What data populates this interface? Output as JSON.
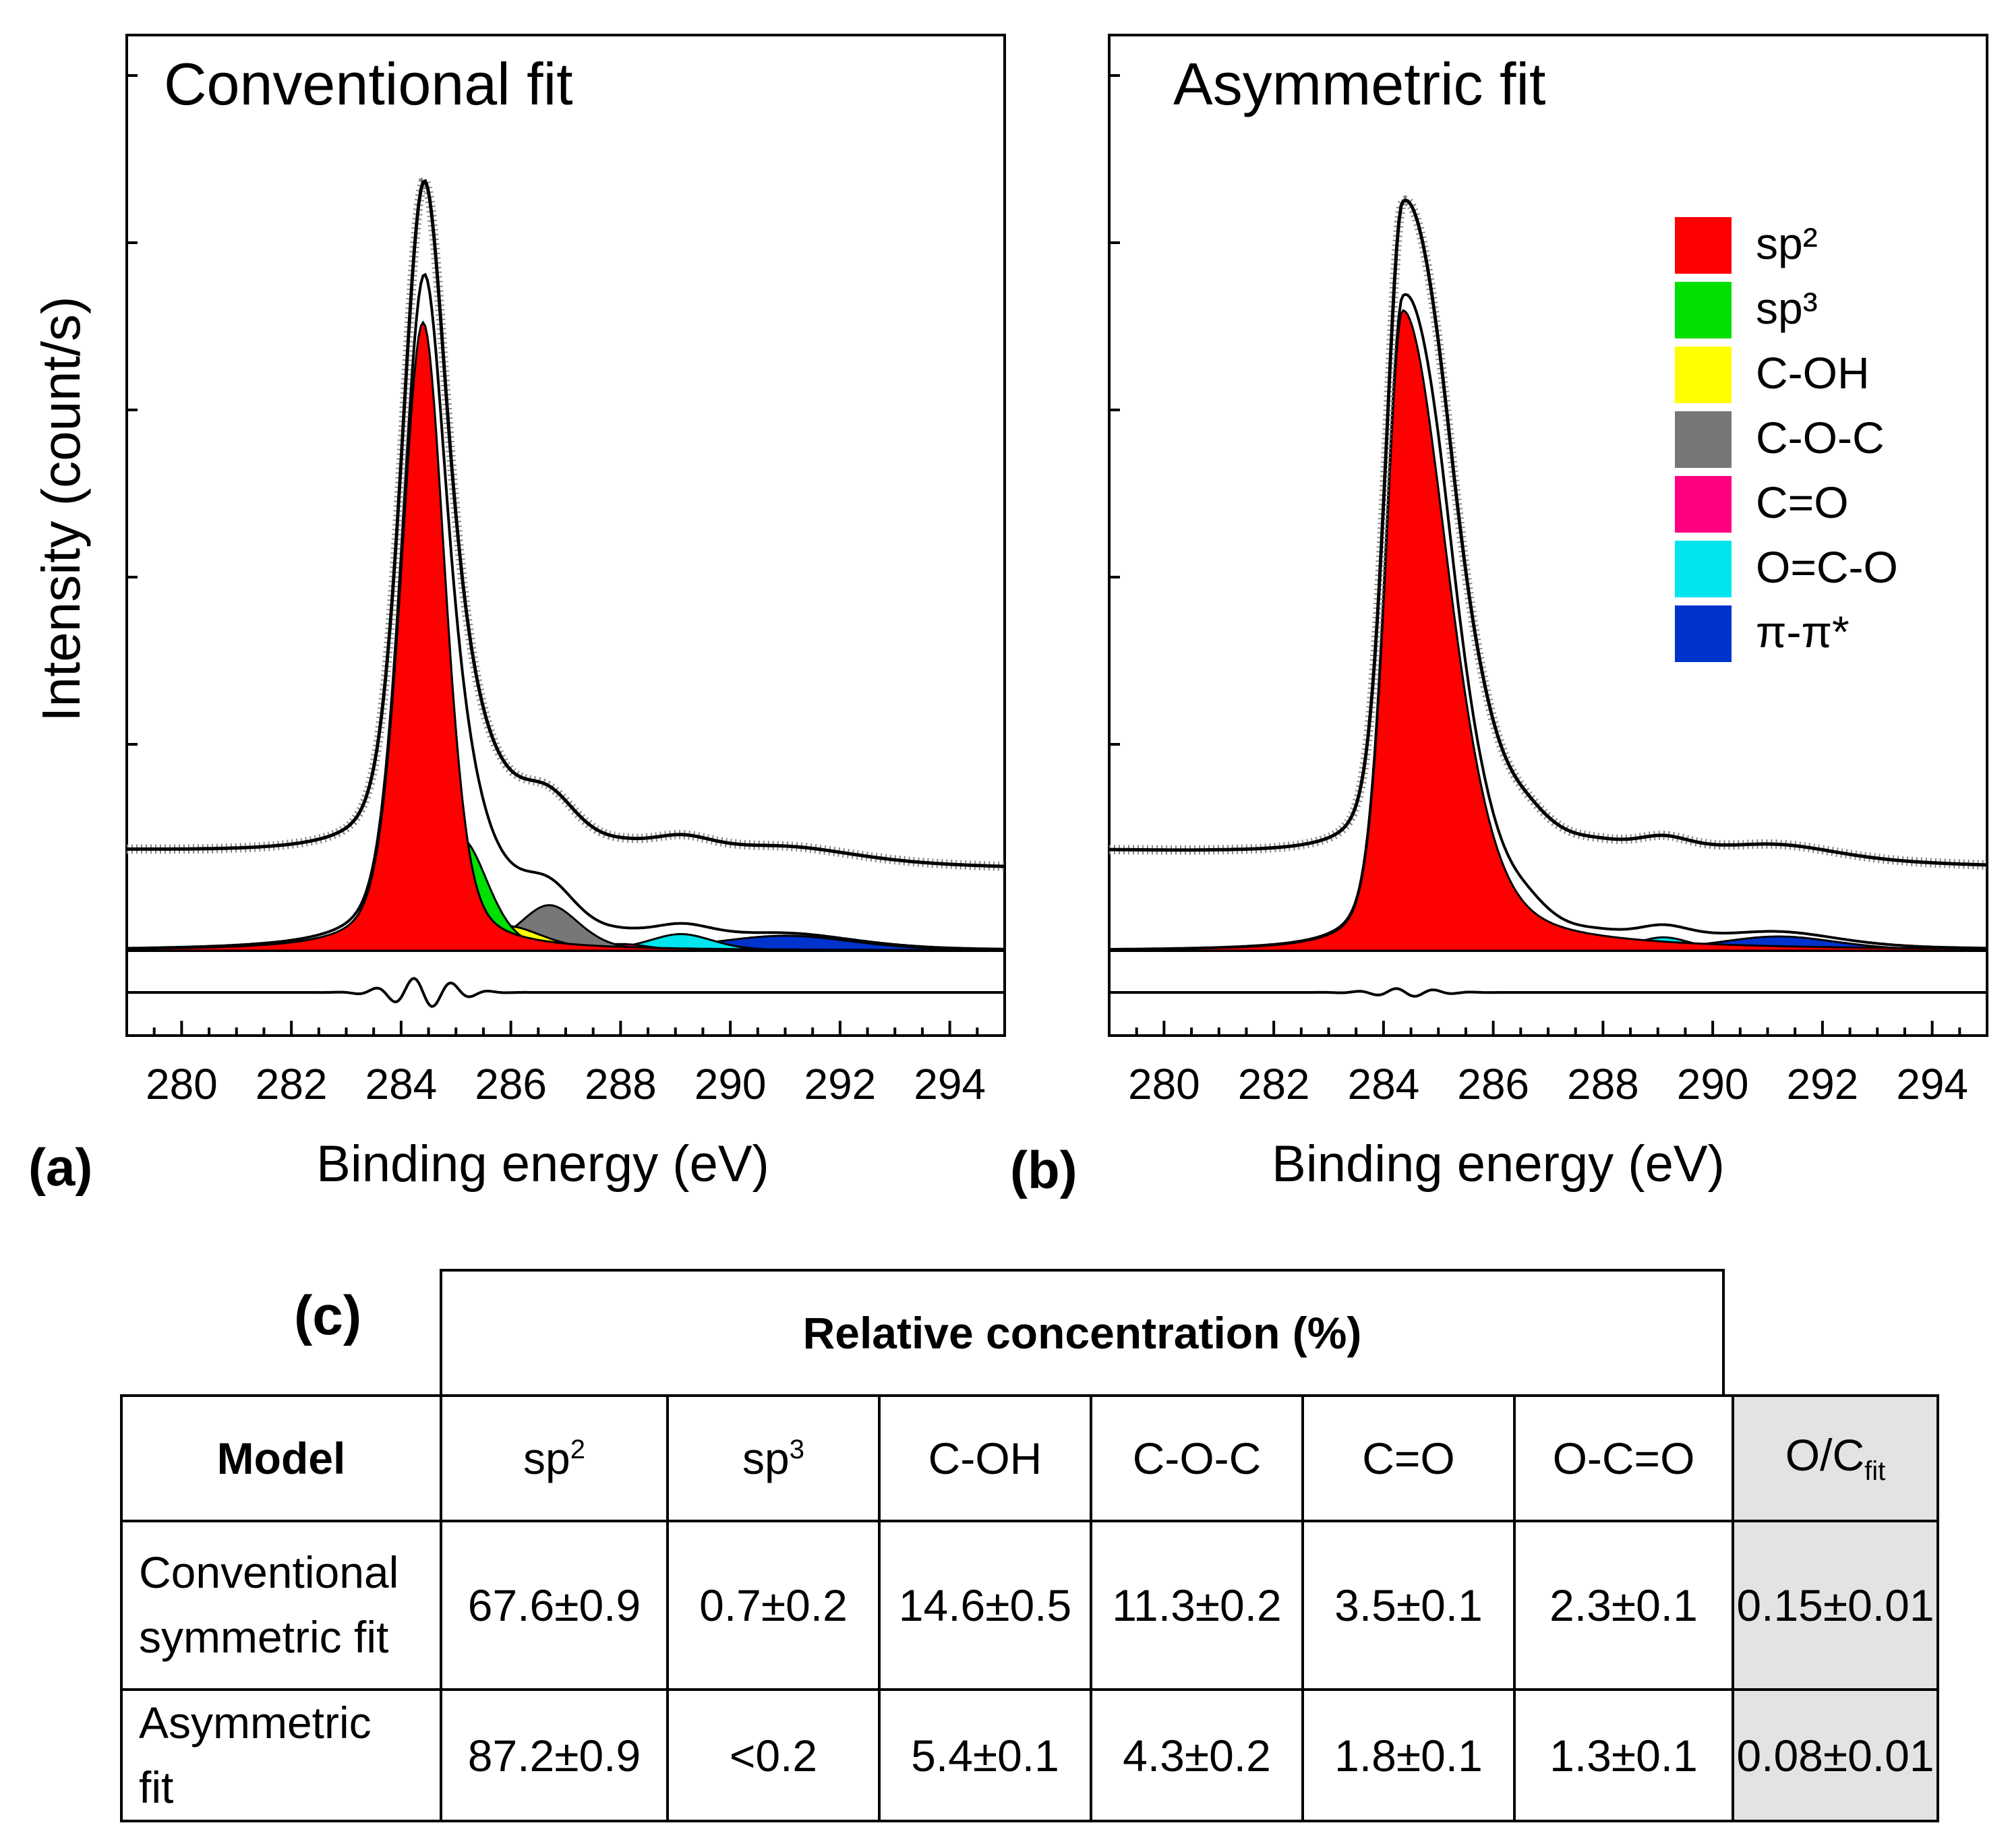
{
  "colors": {
    "sp2": "#ff0000",
    "sp3": "#00e000",
    "C-OH": "#ffff00",
    "C-O-C": "#777777",
    "C=O": "#ff0080",
    "O=C-O": "#00e5ee",
    "pi-pi": "#0033cc"
  },
  "chart_data": [
    {
      "type": "line",
      "panel_label": "(a)",
      "title": "Conventional fit",
      "xlabel": "Binding energy (eV)",
      "ylabel": "Intensity (count/s)",
      "xlim": [
        279,
        295
      ],
      "x_ticks": [
        280,
        282,
        284,
        286,
        288,
        290,
        292,
        294
      ],
      "components": [
        {
          "name": "sp2",
          "center": 284.4,
          "height": 0.76,
          "fwhm": 0.95,
          "asym": 1.0
        },
        {
          "name": "sp3",
          "center": 285.1,
          "height": 0.135,
          "fwhm": 1.15,
          "asym": 1.0
        },
        {
          "name": "C-OH",
          "center": 285.9,
          "height": 0.03,
          "fwhm": 1.6,
          "asym": 1.0
        },
        {
          "name": "C-O-C",
          "center": 286.7,
          "height": 0.055,
          "fwhm": 1.3,
          "asym": 1.0
        },
        {
          "name": "C=O",
          "center": 288.0,
          "height": 0.008,
          "fwhm": 1.2,
          "asym": 1.0
        },
        {
          "name": "O=C-O",
          "center": 289.1,
          "height": 0.02,
          "fwhm": 1.4,
          "asym": 1.0
        },
        {
          "name": "pi-pi",
          "center": 291.0,
          "height": 0.018,
          "fwhm": 3.0,
          "asym": 1.0
        }
      ],
      "envelope_peak": 0.92,
      "background_low": 0.12,
      "background_high": 0.1
    },
    {
      "type": "line",
      "panel_label": "(b)",
      "title": "Asymmetric fit",
      "xlabel": "Binding energy (eV)",
      "ylabel": "",
      "xlim": [
        279,
        295
      ],
      "x_ticks": [
        280,
        282,
        284,
        286,
        288,
        290,
        292,
        294
      ],
      "legend": [
        "sp²",
        "sp³",
        "C-OH",
        "C-O-C",
        "C=O",
        "O=C-O",
        "π-π*"
      ],
      "legend_keys": [
        "sp2",
        "sp3",
        "C-OH",
        "C-O-C",
        "C=O",
        "O=C-O",
        "pi-pi"
      ],
      "legend_position": "top-right",
      "components": [
        {
          "name": "sp2",
          "center": 284.35,
          "height": 0.77,
          "fwhm": 0.75,
          "asym": 2.6
        },
        {
          "name": "sp3",
          "center": 285.0,
          "height": 0.062,
          "fwhm": 0.9,
          "asym": 1.0
        },
        {
          "name": "C-OH",
          "center": 285.8,
          "height": 0.016,
          "fwhm": 0.9,
          "asym": 1.0
        },
        {
          "name": "C-O-C",
          "center": 286.6,
          "height": 0.02,
          "fwhm": 1.0,
          "asym": 1.0
        },
        {
          "name": "C=O",
          "center": 287.9,
          "height": 0.004,
          "fwhm": 1.0,
          "asym": 1.0
        },
        {
          "name": "O=C-O",
          "center": 289.1,
          "height": 0.016,
          "fwhm": 1.2,
          "asym": 1.0
        },
        {
          "name": "pi-pi",
          "center": 291.2,
          "height": 0.017,
          "fwhm": 2.6,
          "asym": 1.0
        }
      ],
      "envelope_peak": 0.9,
      "background_low": 0.12,
      "background_high": 0.1
    },
    {
      "type": "table",
      "panel_label": "(c)",
      "group_header": "Relative concentration (%)",
      "columns": [
        "Model",
        "sp",
        "sp",
        "C-OH",
        "C-O-C",
        "C=O",
        "O-C=O",
        "O/C"
      ],
      "column_superscripts": [
        "",
        "2",
        "3",
        "",
        "",
        "",
        "",
        ""
      ],
      "column_subscripts": [
        "",
        "",
        "",
        "",
        "",
        "",
        "",
        "fit"
      ],
      "rows": [
        {
          "label_lines": [
            "Conventional",
            "symmetric fit"
          ],
          "values": [
            "67.6±0.9",
            "0.7±0.2",
            "14.6±0.5",
            "11.3±0.2",
            "3.5±0.1",
            "2.3±0.1",
            "0.15±0.01"
          ]
        },
        {
          "label_lines": [
            "Asymmetric",
            "fit"
          ],
          "values": [
            "87.2±0.9",
            "<0.2",
            "5.4±0.1",
            "4.3±0.2",
            "1.8±0.1",
            "1.3±0.1",
            "0.08±0.01"
          ]
        }
      ]
    }
  ]
}
